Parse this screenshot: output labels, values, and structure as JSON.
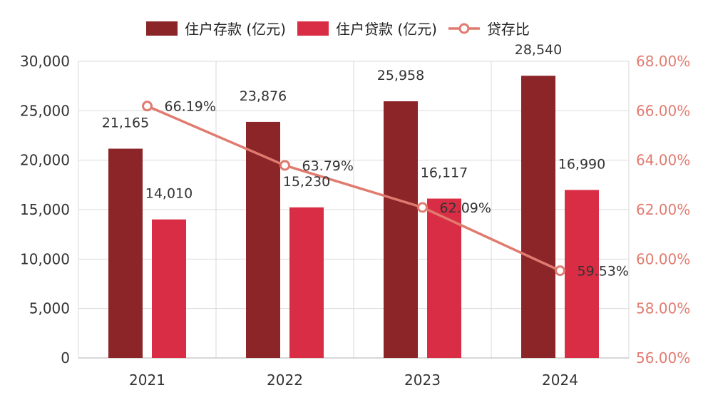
{
  "chart_data": {
    "type": "bar",
    "categories": [
      "2021",
      "2022",
      "2023",
      "2024"
    ],
    "series": [
      {
        "name": "住户存款 (亿元)",
        "kind": "bar",
        "axis": "left",
        "color": "#8b2528",
        "values": [
          21165,
          23876,
          25958,
          28540
        ],
        "labels": [
          "21,165",
          "23,876",
          "25,958",
          "28,540"
        ]
      },
      {
        "name": "住户贷款 (亿元)",
        "kind": "bar",
        "axis": "left",
        "color": "#d92d45",
        "values": [
          14010,
          15230,
          16117,
          16990
        ],
        "labels": [
          "14,010",
          "15,230",
          "16,117",
          "16,990"
        ]
      },
      {
        "name": "贷存比",
        "kind": "line",
        "axis": "right",
        "color": "#e07b70",
        "values": [
          66.19,
          63.79,
          62.09,
          59.53
        ],
        "labels": [
          "66.19%",
          "63.79%",
          "62.09%",
          "59.53%"
        ]
      }
    ],
    "ylim": [
      0,
      30000
    ],
    "yticks": [
      0,
      5000,
      10000,
      15000,
      20000,
      25000,
      30000
    ],
    "ytick_labels": [
      "0",
      "5,000",
      "10,000",
      "15,000",
      "20,000",
      "25,000",
      "30,000"
    ],
    "y2lim": [
      56,
      68
    ],
    "y2ticks": [
      56,
      58,
      60,
      62,
      64,
      66,
      68
    ],
    "y2tick_labels": [
      "56.00%",
      "58.00%",
      "60.00%",
      "62.00%",
      "64.00%",
      "66.00%",
      "68.00%"
    ],
    "grid": true,
    "legend_position": "top-center",
    "title": "",
    "xlabel": "",
    "ylabel": ""
  }
}
